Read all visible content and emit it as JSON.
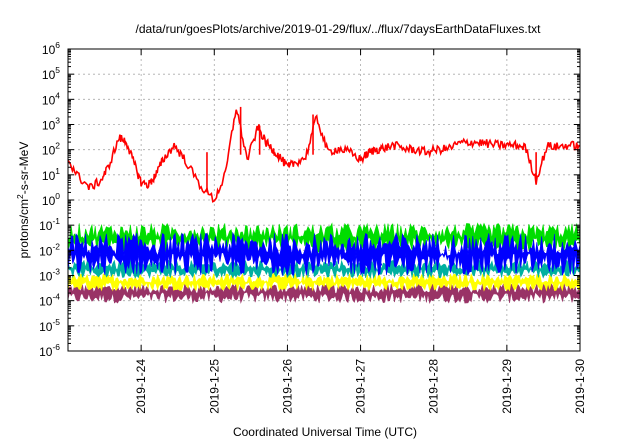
{
  "chart_data": {
    "type": "line",
    "title": "/data/run/goesPlots/archive/2019-01-29/flux/../flux/7daysEarthDataFluxes.txt",
    "xlabel": "Coordinated Universal Time (UTC)",
    "ylabel": {
      "prefix": "protons/cm",
      "sup": "2",
      "suffix": "-s-sr-MeV"
    },
    "x_range": [
      "2019-01-23",
      "2019-01-30"
    ],
    "x_ticks": [
      "2019-1-24",
      "2019-1-25",
      "2019-1-26",
      "2019-1-27",
      "2019-1-28",
      "2019-1-29",
      "2019-1-30"
    ],
    "y_scale": "log",
    "y_range": [
      1e-06,
      1000000.0
    ],
    "y_ticks": [
      {
        "base": "10",
        "exp": "-6"
      },
      {
        "base": "10",
        "exp": "-5"
      },
      {
        "base": "10",
        "exp": "-4"
      },
      {
        "base": "10",
        "exp": "-3"
      },
      {
        "base": "10",
        "exp": "-2"
      },
      {
        "base": "10",
        "exp": "-1"
      },
      {
        "base": "10",
        "exp": "0"
      },
      {
        "base": "10",
        "exp": "1"
      },
      {
        "base": "10",
        "exp": "2"
      },
      {
        "base": "10",
        "exp": "3"
      },
      {
        "base": "10",
        "exp": "4"
      },
      {
        "base": "10",
        "exp": "5"
      },
      {
        "base": "10",
        "exp": "6"
      }
    ],
    "grid": true,
    "series": [
      {
        "color": "#ff0000",
        "style": "line",
        "x": [
          0,
          0.15,
          0.3,
          0.45,
          0.55,
          0.7,
          0.8,
          0.9,
          1.0,
          1.1,
          1.2,
          1.3,
          1.45,
          1.6,
          1.8,
          2.0,
          2.15,
          2.3,
          2.45,
          2.6,
          2.7,
          2.8,
          2.9,
          3.0,
          3.1,
          3.25,
          3.4,
          3.55,
          3.7,
          3.85,
          4.0,
          4.1,
          4.2,
          4.3,
          4.45,
          4.6,
          4.75,
          4.9,
          5.05,
          5.2,
          5.35,
          5.5,
          5.65,
          5.8,
          5.95,
          6.1,
          6.25,
          6.4,
          6.55,
          6.7,
          6.85,
          7.0
        ],
        "y": [
          40,
          8,
          3,
          6,
          20,
          300,
          200,
          30,
          5,
          4,
          10,
          40,
          150,
          40,
          4,
          1,
          10,
          5000,
          40,
          800,
          200,
          100,
          50,
          20,
          30,
          50,
          2000,
          80,
          110,
          80,
          40,
          70,
          100,
          110,
          150,
          110,
          100,
          80,
          100,
          110,
          180,
          200,
          190,
          160,
          150,
          150,
          130,
          6,
          140,
          130,
          150,
          140
        ],
        "spikes": [
          {
            "x": 1.9,
            "y": 2
          },
          {
            "x": 2.36,
            "y": 5000
          },
          {
            "x": 2.62,
            "y": 900
          },
          {
            "x": 3.35,
            "y": 2500
          },
          {
            "x": 6.4,
            "y": 6
          }
        ]
      },
      {
        "color": "#00dd00",
        "style": "noisy-band",
        "low": 0.008,
        "high": 0.12
      },
      {
        "color": "#0000ff",
        "style": "noisy-band",
        "low": 0.001,
        "high": 0.05,
        "dips_to": 0.0025
      },
      {
        "color": "#00b0a0",
        "style": "noisy-band",
        "low": 0.0008,
        "high": 0.004
      },
      {
        "color": "#ffff00",
        "style": "noisy-band",
        "low": 0.00025,
        "high": 0.0012
      },
      {
        "color": "#993366",
        "style": "noisy-band",
        "low": 8e-05,
        "high": 0.0005
      }
    ]
  }
}
